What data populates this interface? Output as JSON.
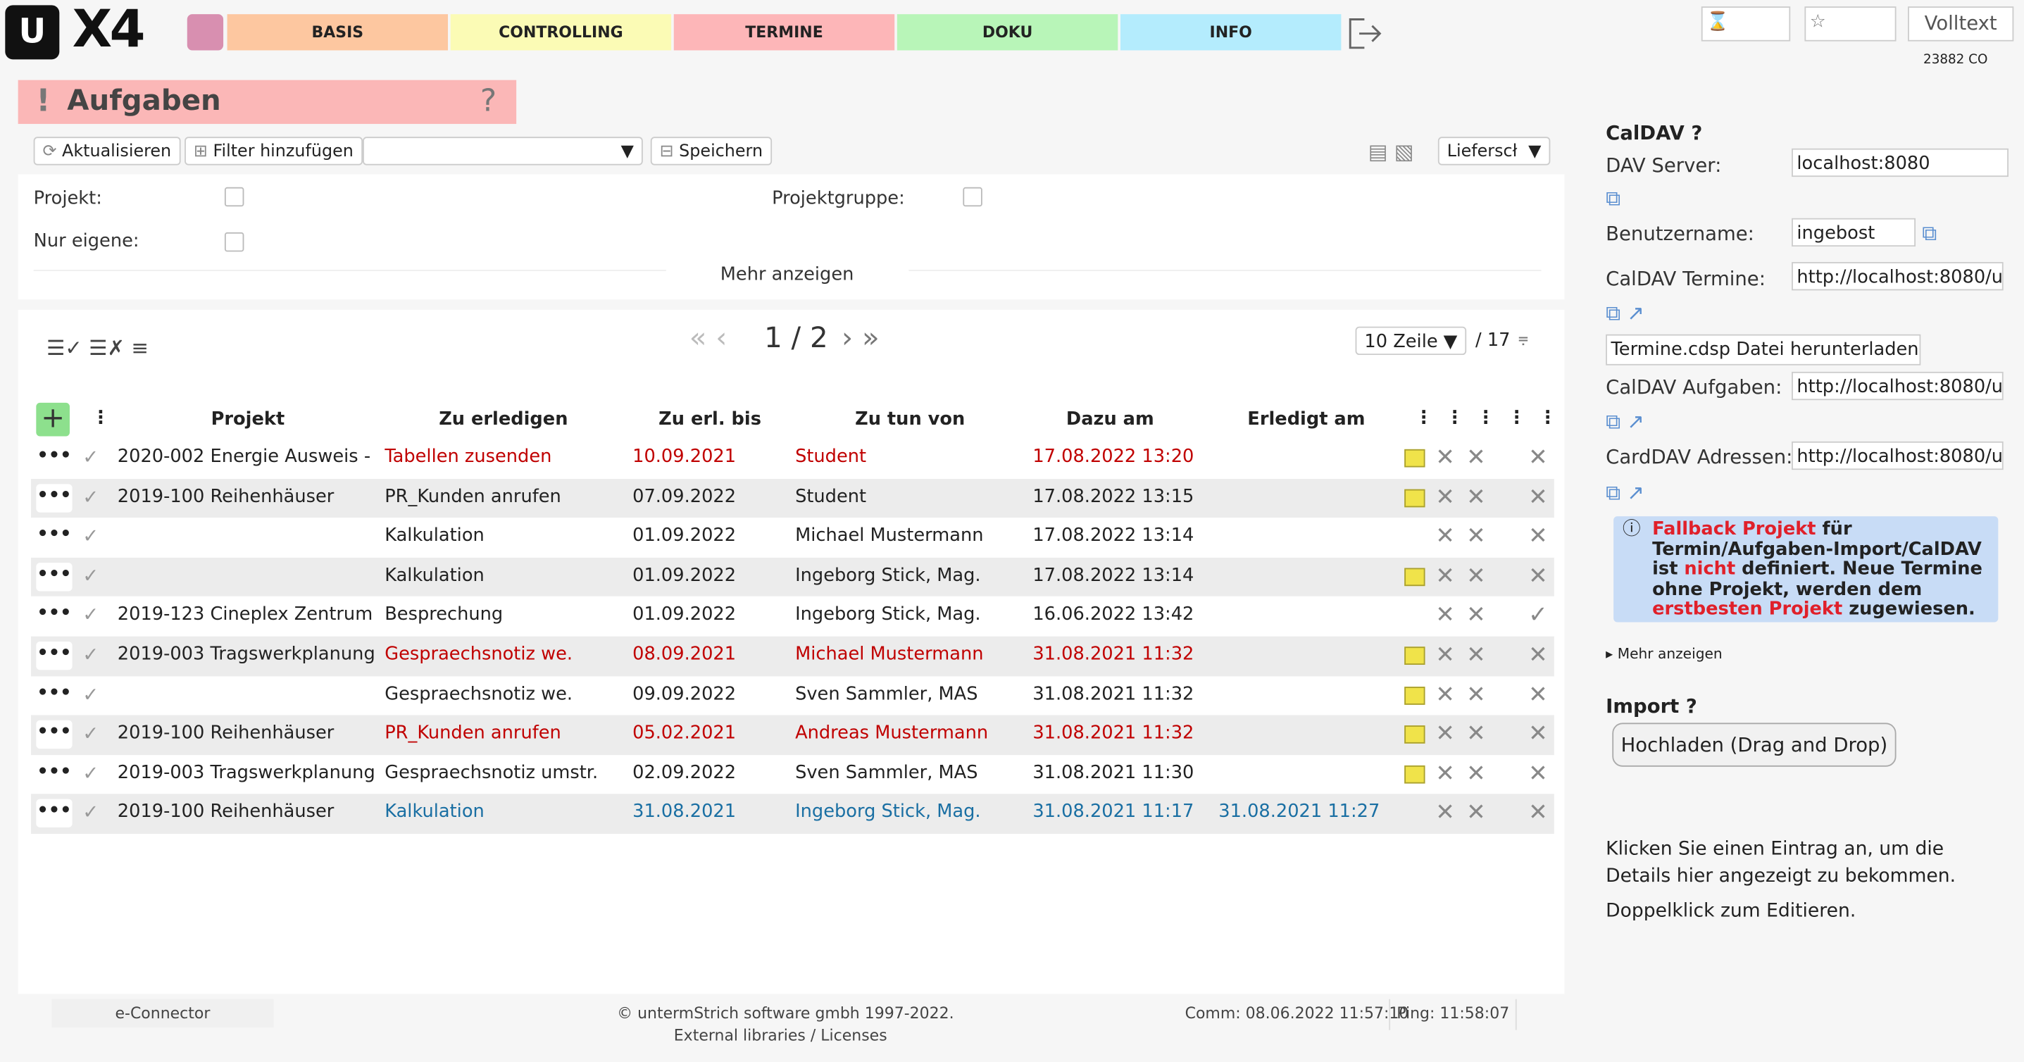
{
  "header": {
    "logo_mark": "U",
    "logo": "X4",
    "nav": [
      "BASIS",
      "CONTROLLING",
      "TERMINE",
      "DOKU",
      "INFO"
    ],
    "fulltext": "Volltext",
    "user": "23882 CO"
  },
  "page_title": "Aufgaben",
  "toolbar": {
    "refresh": "Aktualisieren",
    "add_filter": "Filter hinzufügen",
    "save": "Speichern",
    "report": "Lieferscł"
  },
  "filters": {
    "projekt": "Projekt:",
    "nur_eigene": "Nur eigene:",
    "projektgruppe": "Projektgruppe:",
    "more": "Mehr anzeigen"
  },
  "table": {
    "page": "1 / 2",
    "rows_per_page": "10 Zeile",
    "total": "/ 17",
    "columns": [
      "Projekt",
      "Zu erledigen",
      "Zu erl. bis",
      "Zu tun von",
      "Dazu am",
      "Erledigt am"
    ],
    "rows": [
      [
        "2020-002 Energie Ausweis -",
        "Tabellen zusenden",
        "10.09.2021",
        "Student",
        "17.08.2022 13:20",
        null
      ],
      [
        "2019-100 Reihenhäuser",
        "PR_Kunden anrufen",
        "07.09.2022",
        "Student",
        "17.08.2022 13:15",
        null
      ],
      [
        null,
        "Kalkulation",
        "01.09.2022",
        "Michael Mustermann",
        "17.08.2022 13:14",
        null
      ],
      [
        null,
        "Kalkulation",
        "01.09.2022",
        "Ingeborg Stick, Mag.",
        "17.08.2022 13:14",
        null
      ],
      [
        "2019-123 Cineplex Zentrum",
        "Besprechung",
        "01.09.2022",
        "Ingeborg Stick, Mag.",
        "16.06.2022 13:42",
        null
      ],
      [
        "2019-003 Tragswerkplanung",
        "Gespraechsnotiz we.",
        "08.09.2021",
        "Michael Mustermann",
        "31.08.2021 11:32",
        null
      ],
      [
        null,
        "Gespraechsnotiz we.",
        "09.09.2022",
        "Sven Sammler, MAS",
        "31.08.2021 11:32",
        null
      ],
      [
        "2019-100 Reihenhäuser",
        "PR_Kunden anrufen",
        "05.02.2021",
        "Andreas Mustermann",
        "31.08.2021 11:32",
        null
      ],
      [
        "2019-003 Tragswerkplanung",
        "Gespraechsnotiz umstr.",
        "02.09.2022",
        "Sven Sammler, MAS",
        "31.08.2021 11:30",
        null
      ],
      [
        "2019-100 Reihenhäuser",
        "Kalkulation",
        "31.08.2021",
        "Ingeborg Stick, Mag.",
        "31.08.2021 11:17",
        "31.08.2021 11:27"
      ]
    ]
  },
  "sidebar": {
    "caldav_title": "CalDAV",
    "dav_server_label": "DAV Server:",
    "dav_server": "localhost:8080",
    "user_label": "Benutzername:",
    "user": "ingebost",
    "termine_label": "CalDAV Termine:",
    "termine_url": "http://localhost:8080/u",
    "download": "Termine.cdsp Datei herunterladen",
    "aufgaben_label": "CalDAV Aufgaben:",
    "aufgaben_url": "http://localhost:8080/u",
    "card_label": "CardDAV Adressen:",
    "card_url": "http://localhost:8080/u",
    "info": [
      "Fallback Projekt",
      " für Termin/Aufgaben-Import/CalDAV ist ",
      "nicht",
      " definiert. Neue Termine ohne Projekt, werden dem ",
      "erstbesten Projekt",
      " zugewiesen."
    ],
    "more": "Mehr anzeigen",
    "import_title": "Import",
    "upload": "Hochladen (Drag and Drop)",
    "hint1": "Klicken Sie einen Eintrag an, um die Details hier angezeigt zu bekommen.",
    "hint2": "Doppelklick zum Editieren."
  },
  "footer": {
    "connector": "e-Connector",
    "copyright": "© untermStrich software gmbh 1997-2022.",
    "licenses": "External libraries / Licenses",
    "comm": "Comm: 08.06.2022 11:57:10",
    "ping": "Ping: 11:58:07"
  }
}
